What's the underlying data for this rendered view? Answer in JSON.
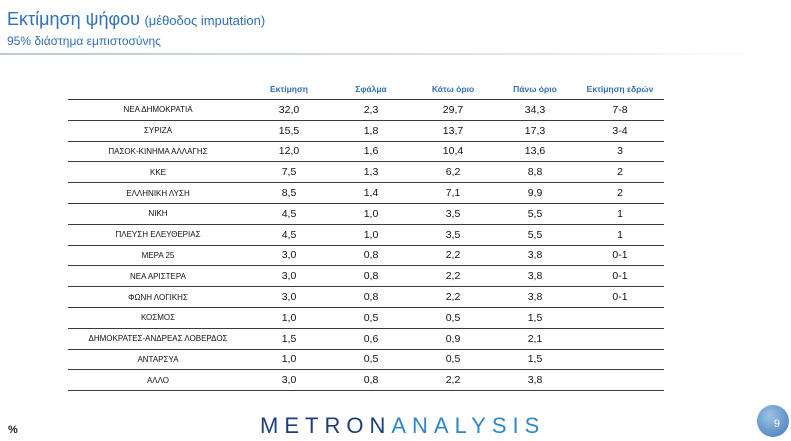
{
  "header": {
    "title": "Εκτίμηση ψήφου",
    "title_paren": "(μέθοδος imputation)",
    "subtitle": "95% διάστημα εμπιστοσύνης"
  },
  "table": {
    "columns": [
      "",
      "Εκτίμηση",
      "Σφάλμα",
      "Κάτω όριο",
      "Πάνω όριο",
      "Εκτίμηση εδρών"
    ],
    "rows": [
      [
        "ΝΕΑ  ΔΗΜΟΚΡΑΤΙΑ",
        "32,0",
        "2,3",
        "29,7",
        "34,3",
        "7-8"
      ],
      [
        "ΣΥΡΙΖΑ",
        "15,5",
        "1,8",
        "13,7",
        "17,3",
        "3-4"
      ],
      [
        "ΠΑΣΟΚ-ΚΙΝΗΜΑ  ΑΛΛΑΓΗΣ",
        "12,0",
        "1,6",
        "10,4",
        "13,6",
        "3"
      ],
      [
        "ΚΚΕ",
        "7,5",
        "1,3",
        "6,2",
        "8,8",
        "2"
      ],
      [
        "ΕΛΛΗΝΙΚΗ ΛΥΣΗ",
        "8,5",
        "1,4",
        "7,1",
        "9,9",
        "2"
      ],
      [
        "ΝΙΚΗ",
        "4,5",
        "1,0",
        "3,5",
        "5,5",
        "1"
      ],
      [
        "ΠΛΕΥΣΗ ΕΛΕΥΘΕΡΙΑΣ",
        "4,5",
        "1,0",
        "3,5",
        "5,5",
        "1"
      ],
      [
        "ΜΕΡΑ 25",
        "3,0",
        "0,8",
        "2,2",
        "3,8",
        "0-1"
      ],
      [
        "ΝΕΑ ΑΡΙΣΤΕΡΑ",
        "3,0",
        "0,8",
        "2,2",
        "3,8",
        "0-1"
      ],
      [
        "ΦΩΝΗ ΛΟΓΙΚΗΣ",
        "3,0",
        "0,8",
        "2,2",
        "3,8",
        "0-1"
      ],
      [
        "ΚΟΣΜΟΣ",
        "1,0",
        "0,5",
        "0,5",
        "1,5",
        ""
      ],
      [
        "ΔΗΜΟΚΡΑΤΕΣ-ΑΝΔΡΕΑΣ ΛΟΒΕΡΔΟΣ",
        "1,5",
        "0,6",
        "0,9",
        "2,1",
        ""
      ],
      [
        "ΑΝΤΑΡΣΥΑ",
        "1,0",
        "0,5",
        "0,5",
        "1,5",
        ""
      ],
      [
        "ΑΛΛΟ",
        "3,0",
        "0,8",
        "2,2",
        "3,8",
        ""
      ]
    ]
  },
  "footer": {
    "logo_part1": "METRON",
    "logo_part2": "ANALYSIS",
    "unit_label": "%",
    "page_number": "9"
  },
  "colors": {
    "accent": "#2e6fb7",
    "logo": "#1f3d7a"
  }
}
